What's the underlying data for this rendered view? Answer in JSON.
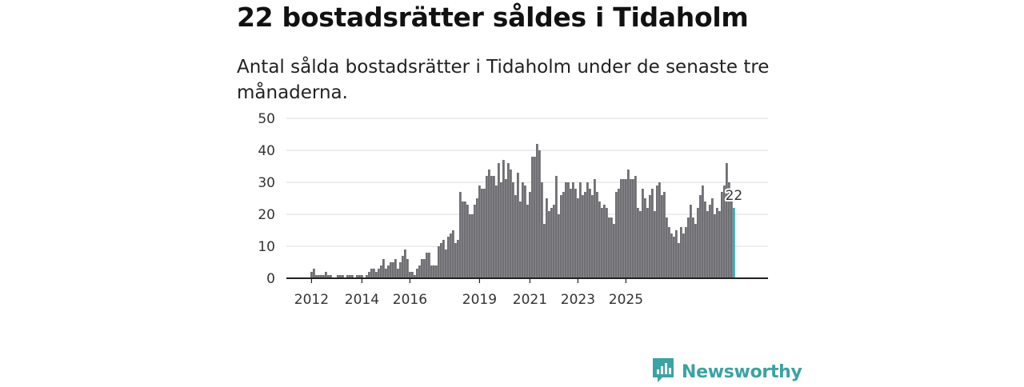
{
  "title": "22 bostadsrätter såldes i Tidaholm",
  "subtitle": "Antal sålda bostadsrätter i Tidaholm under de senaste tre månaderna.",
  "brand": {
    "name": "Newsworthy",
    "icon": "newsworthy-logo-icon",
    "color": "#3aa3a3"
  },
  "chart_data": {
    "type": "bar",
    "title": "22 bostadsrätter såldes i Tidaholm",
    "xlabel": "",
    "ylabel": "",
    "ylim": [
      0,
      50
    ],
    "yticks": [
      0,
      10,
      20,
      30,
      40,
      50
    ],
    "xtick_labels": [
      "2012",
      "2014",
      "2016",
      "2019",
      "2021",
      "2023",
      "2025"
    ],
    "xtick_indices": [
      0,
      21,
      41,
      70,
      91,
      111,
      131
    ],
    "bar_color": "#6e6e73",
    "highlight_color": "#2ab3b3",
    "highlight_label": "22",
    "grid": true,
    "values": [
      2,
      3,
      1,
      1,
      1,
      1,
      2,
      1,
      1,
      0,
      0,
      1,
      1,
      1,
      0,
      1,
      1,
      1,
      0,
      1,
      1,
      1,
      0,
      1,
      2,
      3,
      3,
      2,
      3,
      4,
      6,
      3,
      4,
      5,
      5,
      6,
      3,
      5,
      7,
      9,
      6,
      2,
      2,
      1,
      3,
      4,
      6,
      6,
      8,
      8,
      4,
      4,
      4,
      10,
      11,
      12,
      9,
      13,
      14,
      15,
      11,
      12,
      27,
      24,
      24,
      23,
      20,
      20,
      23,
      25,
      29,
      28,
      28,
      32,
      34,
      32,
      32,
      29,
      36,
      30,
      37,
      31,
      36,
      34,
      30,
      26,
      33,
      24,
      30,
      29,
      23,
      27,
      38,
      38,
      42,
      40,
      30,
      17,
      25,
      21,
      22,
      23,
      32,
      20,
      26,
      27,
      30,
      30,
      28,
      30,
      28,
      25,
      30,
      26,
      27,
      30,
      28,
      26,
      31,
      27,
      24,
      22,
      23,
      22,
      19,
      19,
      17,
      27,
      28,
      31,
      31,
      31,
      34,
      31,
      31,
      32,
      22,
      21,
      28,
      25,
      22,
      26,
      28,
      21,
      29,
      30,
      26,
      27,
      19,
      16,
      14,
      13,
      15,
      11,
      16,
      14,
      16,
      19,
      23,
      19,
      17,
      22,
      26,
      29,
      24,
      21,
      23,
      25,
      20,
      22,
      21,
      27,
      29,
      36,
      30,
      24,
      22
    ]
  }
}
